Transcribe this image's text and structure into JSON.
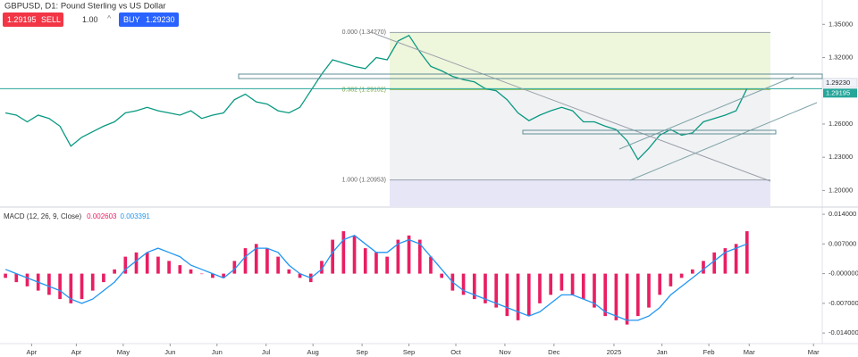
{
  "toolbar": {
    "symbol_title": "GBPUSD, D1: Pound Sterling vs US Dollar",
    "sell_price": "1.29195",
    "sell_label": "SELL",
    "quantity": "1.00",
    "buy_label": "BUY",
    "buy_price": "1.29230"
  },
  "chart_data": [
    {
      "type": "line",
      "x": [
        0,
        1,
        2,
        3,
        4,
        5,
        6,
        7,
        8,
        9,
        10,
        11,
        12,
        13,
        14,
        15,
        16,
        17,
        18,
        19,
        20,
        21,
        22,
        23,
        24,
        25,
        26,
        27,
        28,
        29,
        30,
        31,
        32,
        33,
        34,
        35,
        36,
        37,
        38,
        39,
        40,
        41,
        42,
        43,
        44,
        45,
        46,
        47,
        48,
        49,
        50,
        51,
        52,
        53,
        54,
        55,
        56,
        57,
        58,
        59,
        60,
        61,
        62,
        63,
        64,
        65,
        66,
        67,
        68
      ],
      "xlim": [
        -0.5,
        74.9
      ],
      "xticks": [
        {
          "value": 2.4,
          "label": "Apr"
        },
        {
          "value": 6.5,
          "label": "Apr"
        },
        {
          "value": 10.8,
          "label": "May"
        },
        {
          "value": 15.1,
          "label": "Jun"
        },
        {
          "value": 19.4,
          "label": "Jun"
        },
        {
          "value": 23.9,
          "label": "Jul"
        },
        {
          "value": 28.2,
          "label": "Aug"
        },
        {
          "value": 32.7,
          "label": "Sep"
        },
        {
          "value": 37.0,
          "label": "Sep"
        },
        {
          "value": 41.3,
          "label": "Oct"
        },
        {
          "value": 45.8,
          "label": "Nov"
        },
        {
          "value": 50.3,
          "label": "Dec"
        },
        {
          "value": 55.8,
          "label": "2025"
        },
        {
          "value": 60.2,
          "label": "Jan"
        },
        {
          "value": 64.5,
          "label": "Feb"
        },
        {
          "value": 68.2,
          "label": "Mar"
        },
        {
          "value": 74.1,
          "label": "Mar"
        }
      ],
      "ylim": [
        1.185,
        1.372
      ],
      "yticks": [
        {
          "value": 1.35,
          "label": "1.35000"
        },
        {
          "value": 1.32,
          "label": "1.32000"
        },
        {
          "value": 1.26,
          "label": "1.26000"
        },
        {
          "value": 1.23,
          "label": "1.23000"
        },
        {
          "value": 1.2,
          "label": "1.20000"
        }
      ],
      "series": [
        {
          "color": "#089981",
          "values": [
            1.27,
            1.268,
            1.262,
            1.268,
            1.265,
            1.258,
            1.24,
            1.248,
            1.253,
            1.258,
            1.262,
            1.27,
            1.272,
            1.275,
            1.272,
            1.27,
            1.268,
            1.272,
            1.265,
            1.268,
            1.27,
            1.282,
            1.287,
            1.28,
            1.278,
            1.272,
            1.27,
            1.275,
            1.29,
            1.305,
            1.318,
            1.315,
            1.312,
            1.31,
            1.32,
            1.318,
            1.335,
            1.34,
            1.325,
            1.312,
            1.308,
            1.303,
            1.3,
            1.298,
            1.292,
            1.29,
            1.282,
            1.27,
            1.263,
            1.268,
            1.272,
            1.275,
            1.272,
            1.262,
            1.262,
            1.258,
            1.255,
            1.245,
            1.228,
            1.238,
            1.25,
            1.255,
            1.25,
            1.252,
            1.262,
            1.265,
            1.268,
            1.272,
            1.292
          ]
        }
      ],
      "fib_levels": [
        {
          "value": 1.3427,
          "label": "0.000 (1.34270)"
        },
        {
          "value": 1.29102,
          "label": "0.382 (1.29102)"
        },
        {
          "value": 1.20953,
          "label": "1.000 (1.20953)"
        }
      ],
      "fib_colors": [
        "#eef6dc",
        "#f1f2f4",
        "#e6e6f7"
      ],
      "price_tags": [
        {
          "value": 1.2923,
          "label": "1.29230",
          "color": "#f0f3fa"
        },
        {
          "value": 1.29195,
          "label": "1.29195",
          "color": "#26a69a"
        }
      ]
    },
    {
      "type": "bar",
      "title": "MACD (12, 26, 9, Close)",
      "legend_values": [
        0.002603,
        0.003391
      ],
      "x": [
        0,
        1,
        2,
        3,
        4,
        5,
        6,
        7,
        8,
        9,
        10,
        11,
        12,
        13,
        14,
        15,
        16,
        17,
        18,
        19,
        20,
        21,
        22,
        23,
        24,
        25,
        26,
        27,
        28,
        29,
        30,
        31,
        32,
        33,
        34,
        35,
        36,
        37,
        38,
        39,
        40,
        41,
        42,
        43,
        44,
        45,
        46,
        47,
        48,
        49,
        50,
        51,
        52,
        53,
        54,
        55,
        56,
        57,
        58,
        59,
        60,
        61,
        62,
        63,
        64,
        65,
        66,
        67,
        68
      ],
      "xlim": [
        -0.5,
        74.9
      ],
      "ylim": [
        -0.0165,
        0.0157
      ],
      "yticks": [
        {
          "value": 0.014,
          "label": "0.014000"
        },
        {
          "value": 0.007,
          "label": "0.007000"
        },
        {
          "value": 0,
          "label": "-0.000000"
        },
        {
          "value": -0.007,
          "label": "-0.007000"
        },
        {
          "value": -0.014,
          "label": "-0.014000"
        }
      ],
      "series": [
        {
          "type": "bar",
          "color": "#e91e63",
          "values": [
            -0.001,
            -0.002,
            -0.003,
            -0.004,
            -0.005,
            -0.006,
            -0.007,
            -0.006,
            -0.004,
            -0.002,
            0.001,
            0.004,
            0.005,
            0.005,
            0.004,
            0.003,
            0.002,
            0.001,
            0.0,
            -0.001,
            -0.001,
            0.003,
            0.006,
            0.007,
            0.006,
            0.004,
            0.001,
            -0.001,
            -0.002,
            0.003,
            0.008,
            0.01,
            0.009,
            0.006,
            0.005,
            0.004,
            0.008,
            0.009,
            0.008,
            0.004,
            -0.001,
            -0.004,
            -0.005,
            -0.006,
            -0.007,
            -0.008,
            -0.01,
            -0.011,
            -0.01,
            -0.007,
            -0.005,
            -0.004,
            -0.005,
            -0.006,
            -0.008,
            -0.01,
            -0.011,
            -0.012,
            -0.01,
            -0.008,
            -0.005,
            -0.003,
            -0.001,
            0.001,
            0.003,
            0.005,
            0.006,
            0.007,
            0.01
          ]
        },
        {
          "type": "line",
          "color": "#2196f3",
          "values": [
            0.001,
            0.0,
            -0.001,
            -0.002,
            -0.003,
            -0.004,
            -0.006,
            -0.007,
            -0.006,
            -0.004,
            -0.002,
            0.001,
            0.003,
            0.005,
            0.006,
            0.005,
            0.004,
            0.002,
            0.001,
            0.0,
            -0.001,
            0.001,
            0.004,
            0.006,
            0.006,
            0.005,
            0.002,
            0.0,
            -0.001,
            0.001,
            0.005,
            0.008,
            0.009,
            0.007,
            0.005,
            0.005,
            0.007,
            0.008,
            0.007,
            0.004,
            0.001,
            -0.002,
            -0.004,
            -0.005,
            -0.006,
            -0.007,
            -0.008,
            -0.009,
            -0.01,
            -0.009,
            -0.007,
            -0.005,
            -0.005,
            -0.006,
            -0.007,
            -0.009,
            -0.01,
            -0.011,
            -0.011,
            -0.01,
            -0.008,
            -0.005,
            -0.003,
            -0.001,
            0.001,
            0.003,
            0.005,
            0.006,
            0.007
          ]
        }
      ]
    }
  ]
}
